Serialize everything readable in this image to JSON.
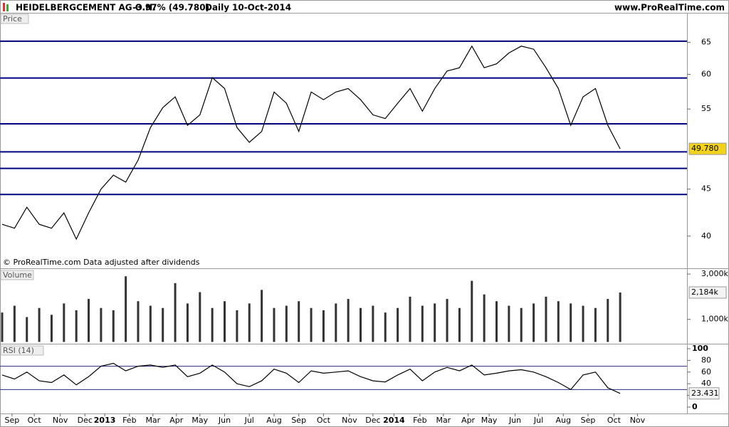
{
  "header": {
    "name": "HEIDELBERGCEMENT AG O.N.",
    "change": "-3.97% (49.780)",
    "period": "Daily",
    "date": "10-Oct-2014",
    "site": "www.ProRealTime.com"
  },
  "chart_data": [
    {
      "type": "line",
      "title": "Price",
      "log_scale": true,
      "color": "#000000",
      "note": "© ProRealTime.com Data adjusted after dividends",
      "values": [
        41.2,
        40.8,
        43.0,
        41.2,
        40.8,
        42.4,
        39.7,
        42.4,
        45.0,
        46.6,
        45.8,
        48.4,
        52.5,
        55.2,
        56.7,
        52.8,
        54.2,
        59.5,
        57.9,
        52.5,
        50.6,
        52.0,
        57.4,
        55.8,
        52.0,
        57.4,
        56.3,
        57.4,
        57.9,
        56.3,
        54.2,
        53.7,
        55.8,
        57.9,
        54.7,
        57.9,
        60.5,
        61.0,
        64.4,
        61.0,
        61.6,
        63.3,
        64.4,
        63.9,
        61.0,
        57.9,
        52.8,
        56.7,
        57.9,
        52.8,
        49.78
      ],
      "last_tag": {
        "value": 49.78,
        "label": "49.780"
      },
      "levels": [
        65.2,
        59.45,
        53.0,
        49.4,
        47.4,
        44.4
      ],
      "level_color": "#000080",
      "xlim": [
        0,
        52.7
      ],
      "ylim": [
        36.9,
        70
      ],
      "yticks": [
        40,
        45,
        55,
        60,
        65
      ]
    },
    {
      "type": "bar",
      "title": "Volume",
      "color": "#333333",
      "values": [
        1300,
        1600,
        1100,
        1500,
        1200,
        1700,
        1400,
        1900,
        1500,
        1400,
        2900,
        1800,
        1600,
        1500,
        2600,
        1700,
        2200,
        1500,
        1800,
        1400,
        1700,
        2300,
        1500,
        1600,
        1800,
        1500,
        1400,
        1700,
        1900,
        1500,
        1600,
        1300,
        1500,
        2000,
        1600,
        1700,
        1900,
        1500,
        2700,
        2100,
        1800,
        1600,
        1500,
        1700,
        2000,
        1800,
        1700,
        1600,
        1500,
        1900,
        2184
      ],
      "last_tag": {
        "value": 2184,
        "label": "2,184k"
      },
      "xlim": [
        0,
        52.7
      ],
      "ylim": [
        -79,
        3222
      ],
      "yticks": [
        {
          "value": 1000,
          "label": "1,000k"
        },
        {
          "value": 3000,
          "label": "3,000k"
        }
      ]
    },
    {
      "type": "line",
      "title": "RSI (14)",
      "color": "#000000",
      "values": [
        55,
        48,
        60,
        45,
        42,
        55,
        38,
        52,
        70,
        75,
        62,
        70,
        72,
        68,
        72,
        52,
        58,
        72,
        60,
        40,
        35,
        45,
        65,
        58,
        42,
        62,
        58,
        60,
        62,
        52,
        45,
        43,
        55,
        65,
        45,
        60,
        68,
        62,
        72,
        55,
        58,
        62,
        64,
        60,
        52,
        42,
        30,
        55,
        60,
        33,
        23.431
      ],
      "levels": [
        70,
        30
      ],
      "level_color": "#2a2a80",
      "xlim": [
        0,
        52.7
      ],
      "ylim": [
        -11,
        107.3
      ],
      "yticks": [
        0,
        20,
        40,
        60,
        80,
        100
      ],
      "xticks": [
        {
          "value": 0.8,
          "label": "Sep"
        },
        {
          "value": 2.6,
          "label": "Oct"
        },
        {
          "value": 4.7,
          "label": "Nov"
        },
        {
          "value": 6.7,
          "label": "Dec"
        },
        {
          "value": 8.3,
          "label": "2013"
        },
        {
          "value": 10.3,
          "label": "Feb"
        },
        {
          "value": 12.2,
          "label": "Mar"
        },
        {
          "value": 14.1,
          "label": "Apr"
        },
        {
          "value": 16.0,
          "label": "May"
        },
        {
          "value": 18.0,
          "label": "Jun"
        },
        {
          "value": 20.0,
          "label": "Jul"
        },
        {
          "value": 22.0,
          "label": "Aug"
        },
        {
          "value": 24.0,
          "label": "Sep"
        },
        {
          "value": 26.0,
          "label": "Oct"
        },
        {
          "value": 28.1,
          "label": "Nov"
        },
        {
          "value": 30.0,
          "label": "Dec"
        },
        {
          "value": 31.7,
          "label": "2014"
        },
        {
          "value": 33.8,
          "label": "Feb"
        },
        {
          "value": 35.7,
          "label": "Mar"
        },
        {
          "value": 37.7,
          "label": "Apr"
        },
        {
          "value": 39.4,
          "label": "May"
        },
        {
          "value": 41.5,
          "label": "Jun"
        },
        {
          "value": 43.4,
          "label": "Jul"
        },
        {
          "value": 45.4,
          "label": "Aug"
        },
        {
          "value": 47.4,
          "label": "Sep"
        },
        {
          "value": 49.5,
          "label": "Oct"
        },
        {
          "value": 51.4,
          "label": "Nov"
        }
      ]
    }
  ]
}
